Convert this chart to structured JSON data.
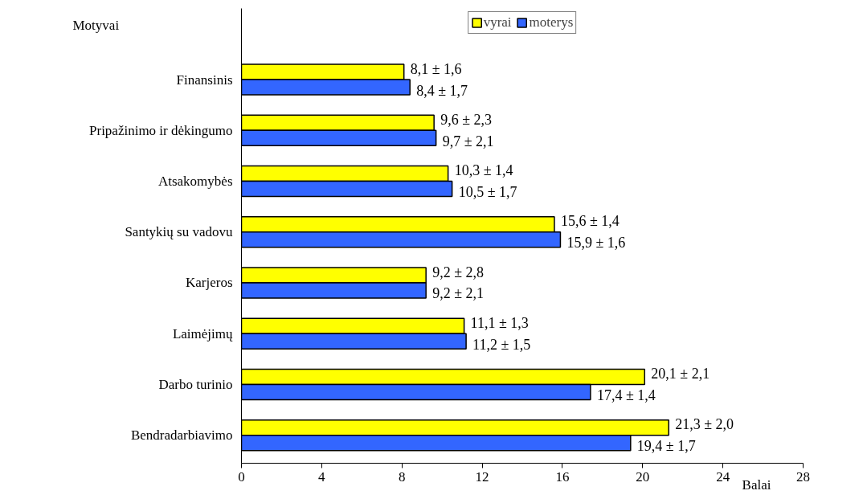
{
  "chart_data": {
    "type": "bar",
    "orientation": "horizontal",
    "xlabel": "Balai",
    "ylabel": "Motyvai",
    "categories": [
      "Finansinis",
      "Pripažinimo ir dėkingumo",
      "Atsakomybės",
      "Santykių su vadovu",
      "Karjeros",
      "Laimėjimų",
      "Darbo turinio",
      "Bendradarbiavimo"
    ],
    "series": [
      {
        "name": "vyrai",
        "color": "#ffff00",
        "values": [
          8.1,
          9.6,
          10.3,
          15.6,
          9.2,
          11.1,
          20.1,
          21.3
        ],
        "value_labels": [
          "8,1 ± 1,6",
          "9,6 ± 2,3",
          "10,3 ± 1,4",
          "15,6 ± 1,4",
          "9,2 ± 2,8",
          "11,1 ± 1,3",
          "20,1 ± 2,1",
          "21,3 ± 2,0"
        ]
      },
      {
        "name": "moterys",
        "color": "#3366ff",
        "values": [
          8.4,
          9.7,
          10.5,
          15.9,
          9.2,
          11.2,
          17.4,
          19.4
        ],
        "value_labels": [
          "8,4 ± 1,7",
          "9,7 ± 2,1",
          "10,5 ± 1,7",
          "15,9 ± 1,6",
          "9,2 ± 2,1",
          "11,2 ± 1,5",
          "17,4 ± 1,4",
          "19,4 ± 1,7"
        ]
      }
    ],
    "xlim": [
      0,
      28
    ],
    "xticks": [
      0,
      4,
      8,
      12,
      16,
      20,
      24,
      28
    ],
    "grid": false,
    "legend": "top"
  }
}
